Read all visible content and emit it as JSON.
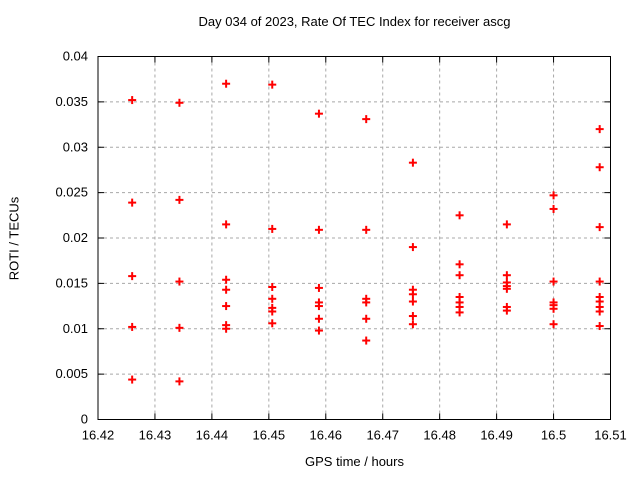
{
  "chart_data": {
    "type": "scatter",
    "title": "Day 034 of 2023, Rate Of TEC Index for receiver ascg",
    "xlabel": "GPS time / hours",
    "ylabel": "ROTI / TECUs",
    "xlim": [
      16.42,
      16.51
    ],
    "ylim": [
      0,
      0.04
    ],
    "grid": true,
    "legend_position": "none",
    "marker": {
      "shape": "plus",
      "color": "#ff0000",
      "size": 9,
      "stroke_width": 2
    },
    "grid_color": "#a8a8a8",
    "border_color": "#000000",
    "xticks": {
      "values": [
        16.42,
        16.43,
        16.44,
        16.45,
        16.46,
        16.47,
        16.48,
        16.49,
        16.5,
        16.51
      ],
      "labels": [
        "16.42",
        "16.43",
        "16.44",
        "16.45",
        "16.46",
        "16.47",
        "16.48",
        "16.49",
        "16.5",
        "16.51"
      ]
    },
    "yticks": {
      "values": [
        0,
        0.005,
        0.01,
        0.015,
        0.02,
        0.025,
        0.03,
        0.035,
        0.04
      ],
      "labels": [
        "0",
        "0.005",
        "0.01",
        "0.015",
        "0.02",
        "0.025",
        "0.03",
        "0.035",
        "0.04"
      ]
    },
    "series": [
      {
        "name": "ROTI",
        "points": [
          [
            16.426,
            0.0352
          ],
          [
            16.426,
            0.0239
          ],
          [
            16.426,
            0.0158
          ],
          [
            16.426,
            0.0102
          ],
          [
            16.426,
            0.0044
          ],
          [
            16.4343,
            0.0349
          ],
          [
            16.4343,
            0.0242
          ],
          [
            16.4343,
            0.0152
          ],
          [
            16.4343,
            0.0101
          ],
          [
            16.4343,
            0.0042
          ],
          [
            16.4425,
            0.037
          ],
          [
            16.4425,
            0.0215
          ],
          [
            16.4425,
            0.0154
          ],
          [
            16.4425,
            0.0143
          ],
          [
            16.4425,
            0.0125
          ],
          [
            16.4425,
            0.0104
          ],
          [
            16.4425,
            0.01
          ],
          [
            16.4506,
            0.0369
          ],
          [
            16.4506,
            0.021
          ],
          [
            16.4506,
            0.0146
          ],
          [
            16.4506,
            0.0133
          ],
          [
            16.4506,
            0.0123
          ],
          [
            16.4506,
            0.0119
          ],
          [
            16.4506,
            0.0106
          ],
          [
            16.4588,
            0.0337
          ],
          [
            16.4588,
            0.0209
          ],
          [
            16.4588,
            0.0145
          ],
          [
            16.4588,
            0.0129
          ],
          [
            16.4588,
            0.0125
          ],
          [
            16.4588,
            0.0111
          ],
          [
            16.4588,
            0.0098
          ],
          [
            16.4671,
            0.0331
          ],
          [
            16.4671,
            0.0209
          ],
          [
            16.4671,
            0.0133
          ],
          [
            16.4671,
            0.0129
          ],
          [
            16.4671,
            0.0111
          ],
          [
            16.4671,
            0.0087
          ],
          [
            16.4753,
            0.0283
          ],
          [
            16.4753,
            0.019
          ],
          [
            16.4753,
            0.0143
          ],
          [
            16.4753,
            0.0138
          ],
          [
            16.4753,
            0.013
          ],
          [
            16.4753,
            0.0114
          ],
          [
            16.4753,
            0.0105
          ],
          [
            16.4835,
            0.0225
          ],
          [
            16.4835,
            0.0171
          ],
          [
            16.4835,
            0.0159
          ],
          [
            16.4835,
            0.0135
          ],
          [
            16.4835,
            0.0129
          ],
          [
            16.4835,
            0.0124
          ],
          [
            16.4835,
            0.0118
          ],
          [
            16.4918,
            0.0215
          ],
          [
            16.4918,
            0.0159
          ],
          [
            16.4918,
            0.0151
          ],
          [
            16.4918,
            0.0147
          ],
          [
            16.4918,
            0.0144
          ],
          [
            16.4918,
            0.0124
          ],
          [
            16.4918,
            0.012
          ],
          [
            16.5,
            0.0247
          ],
          [
            16.5,
            0.0232
          ],
          [
            16.5,
            0.0152
          ],
          [
            16.5,
            0.0129
          ],
          [
            16.5,
            0.0126
          ],
          [
            16.5,
            0.0122
          ],
          [
            16.5,
            0.0105
          ],
          [
            16.5081,
            0.032
          ],
          [
            16.5081,
            0.0278
          ],
          [
            16.5081,
            0.0212
          ],
          [
            16.5081,
            0.0152
          ],
          [
            16.5081,
            0.0135
          ],
          [
            16.5081,
            0.013
          ],
          [
            16.5081,
            0.0124
          ],
          [
            16.5081,
            0.0119
          ],
          [
            16.5081,
            0.0103
          ]
        ]
      }
    ]
  }
}
